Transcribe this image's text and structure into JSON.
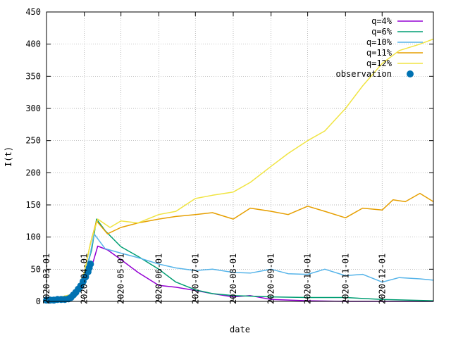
{
  "chart_data": {
    "type": "line",
    "title": "",
    "xlabel": "date",
    "ylabel": "I(t)",
    "xlim": [
      "2020-03-01",
      "2021-01-12"
    ],
    "ylim": [
      0,
      450
    ],
    "grid": true,
    "legend_position": "top-right",
    "y_ticks": [
      "0",
      "50",
      "100",
      "150",
      "200",
      "250",
      "300",
      "350",
      "400",
      "450"
    ],
    "x_ticks": [
      {
        "date": "2020-03-01",
        "label": "2020-03-01"
      },
      {
        "date": "2020-04-01",
        "label": "2020-04-01"
      },
      {
        "date": "2020-05-01",
        "label": "2020-05-01"
      },
      {
        "date": "2020-06-01",
        "label": "2020-06-01"
      },
      {
        "date": "2020-07-01",
        "label": "2020-07-01"
      },
      {
        "date": "2020-08-01",
        "label": "2020-08-01"
      },
      {
        "date": "2020-09-01",
        "label": "2020-09-01"
      },
      {
        "date": "2020-10-01",
        "label": "2020-10-01"
      },
      {
        "date": "2020-11-01",
        "label": "2020-11-01"
      },
      {
        "date": "2020-12-01",
        "label": "2020-12-01"
      }
    ],
    "series": [
      {
        "name": "q=4%",
        "color": "#9400d3",
        "style": "line",
        "points": [
          [
            "2020-03-01",
            2
          ],
          [
            "2020-03-25",
            8
          ],
          [
            "2020-04-01",
            30
          ],
          [
            "2020-04-08",
            60
          ],
          [
            "2020-04-12",
            86
          ],
          [
            "2020-04-20",
            80
          ],
          [
            "2020-05-01",
            65
          ],
          [
            "2020-05-15",
            45
          ],
          [
            "2020-06-01",
            25
          ],
          [
            "2020-06-15",
            22
          ],
          [
            "2020-07-01",
            17
          ],
          [
            "2020-07-15",
            12
          ],
          [
            "2020-08-01",
            7
          ],
          [
            "2020-08-15",
            9
          ],
          [
            "2020-09-01",
            3
          ],
          [
            "2020-10-01",
            1
          ],
          [
            "2020-11-01",
            0
          ],
          [
            "2021-01-12",
            0
          ]
        ]
      },
      {
        "name": "q=6%",
        "color": "#009e73",
        "style": "line",
        "points": [
          [
            "2020-03-01",
            2
          ],
          [
            "2020-03-25",
            10
          ],
          [
            "2020-04-01",
            40
          ],
          [
            "2020-04-07",
            80
          ],
          [
            "2020-04-11",
            128
          ],
          [
            "2020-04-18",
            110
          ],
          [
            "2020-05-01",
            85
          ],
          [
            "2020-05-15",
            70
          ],
          [
            "2020-06-01",
            50
          ],
          [
            "2020-06-15",
            30
          ],
          [
            "2020-07-01",
            18
          ],
          [
            "2020-07-15",
            12
          ],
          [
            "2020-08-01",
            9
          ],
          [
            "2020-09-01",
            7
          ],
          [
            "2020-10-01",
            6
          ],
          [
            "2020-11-01",
            6
          ],
          [
            "2020-12-01",
            3
          ],
          [
            "2021-01-12",
            1
          ]
        ]
      },
      {
        "name": "q=10%",
        "color": "#56b4e9",
        "style": "line",
        "points": [
          [
            "2020-03-01",
            2
          ],
          [
            "2020-03-25",
            12
          ],
          [
            "2020-04-01",
            40
          ],
          [
            "2020-04-06",
            75
          ],
          [
            "2020-04-09",
            105
          ],
          [
            "2020-04-18",
            82
          ],
          [
            "2020-05-01",
            75
          ],
          [
            "2020-05-15",
            68
          ],
          [
            "2020-06-01",
            58
          ],
          [
            "2020-06-15",
            52
          ],
          [
            "2020-07-01",
            48
          ],
          [
            "2020-07-15",
            50
          ],
          [
            "2020-08-01",
            45
          ],
          [
            "2020-08-15",
            44
          ],
          [
            "2020-09-01",
            50
          ],
          [
            "2020-09-15",
            43
          ],
          [
            "2020-10-01",
            42
          ],
          [
            "2020-10-15",
            50
          ],
          [
            "2020-11-01",
            40
          ],
          [
            "2020-11-15",
            42
          ],
          [
            "2020-12-01",
            30
          ],
          [
            "2020-12-15",
            37
          ],
          [
            "2021-01-01",
            35
          ],
          [
            "2021-01-12",
            33
          ]
        ]
      },
      {
        "name": "q=11%",
        "color": "#e69f00",
        "style": "line",
        "points": [
          [
            "2020-03-01",
            2
          ],
          [
            "2020-03-25",
            12
          ],
          [
            "2020-04-01",
            45
          ],
          [
            "2020-04-06",
            90
          ],
          [
            "2020-04-11",
            125
          ],
          [
            "2020-04-20",
            105
          ],
          [
            "2020-05-01",
            115
          ],
          [
            "2020-05-15",
            122
          ],
          [
            "2020-06-01",
            128
          ],
          [
            "2020-06-15",
            132
          ],
          [
            "2020-07-01",
            135
          ],
          [
            "2020-07-15",
            138
          ],
          [
            "2020-08-01",
            128
          ],
          [
            "2020-08-15",
            145
          ],
          [
            "2020-09-01",
            140
          ],
          [
            "2020-09-15",
            135
          ],
          [
            "2020-10-01",
            148
          ],
          [
            "2020-10-15",
            140
          ],
          [
            "2020-11-01",
            130
          ],
          [
            "2020-11-15",
            145
          ],
          [
            "2020-12-01",
            142
          ],
          [
            "2020-12-10",
            158
          ],
          [
            "2020-12-20",
            155
          ],
          [
            "2021-01-01",
            168
          ],
          [
            "2021-01-12",
            155
          ]
        ]
      },
      {
        "name": "q=12%",
        "color": "#f0e442",
        "style": "line",
        "points": [
          [
            "2020-03-01",
            2
          ],
          [
            "2020-03-25",
            12
          ],
          [
            "2020-04-01",
            45
          ],
          [
            "2020-04-06",
            90
          ],
          [
            "2020-04-12",
            128
          ],
          [
            "2020-04-22",
            115
          ],
          [
            "2020-05-01",
            125
          ],
          [
            "2020-05-15",
            122
          ],
          [
            "2020-06-01",
            135
          ],
          [
            "2020-06-15",
            140
          ],
          [
            "2020-07-01",
            160
          ],
          [
            "2020-07-15",
            165
          ],
          [
            "2020-08-01",
            170
          ],
          [
            "2020-08-15",
            185
          ],
          [
            "2020-09-01",
            210
          ],
          [
            "2020-09-15",
            230
          ],
          [
            "2020-10-01",
            250
          ],
          [
            "2020-10-15",
            265
          ],
          [
            "2020-11-01",
            300
          ],
          [
            "2020-11-15",
            335
          ],
          [
            "2020-12-01",
            370
          ],
          [
            "2020-12-15",
            390
          ],
          [
            "2021-01-01",
            400
          ],
          [
            "2021-01-12",
            408
          ]
        ]
      },
      {
        "name": "observation",
        "color": "#0072b2",
        "style": "points",
        "points": [
          [
            "2020-03-01",
            2
          ],
          [
            "2020-03-04",
            2
          ],
          [
            "2020-03-07",
            2
          ],
          [
            "2020-03-10",
            3
          ],
          [
            "2020-03-13",
            3
          ],
          [
            "2020-03-16",
            3
          ],
          [
            "2020-03-19",
            4
          ],
          [
            "2020-03-21",
            6
          ],
          [
            "2020-03-23",
            10
          ],
          [
            "2020-03-25",
            14
          ],
          [
            "2020-03-27",
            19
          ],
          [
            "2020-03-29",
            24
          ],
          [
            "2020-03-31",
            31
          ],
          [
            "2020-04-02",
            38
          ],
          [
            "2020-04-04",
            46
          ],
          [
            "2020-04-05",
            52
          ],
          [
            "2020-04-06",
            58
          ]
        ]
      }
    ]
  }
}
